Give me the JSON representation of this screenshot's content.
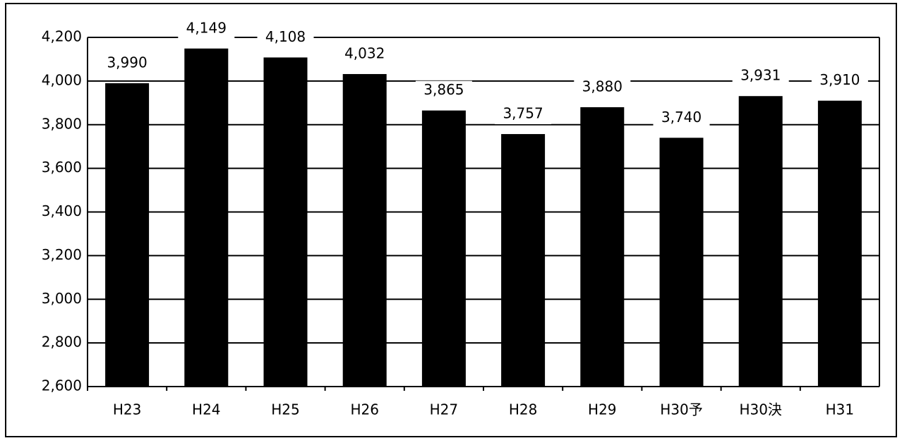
{
  "chart_data": {
    "type": "bar",
    "categories": [
      "H23",
      "H24",
      "H25",
      "H26",
      "H27",
      "H28",
      "H29",
      "H30予",
      "H30決",
      "H31"
    ],
    "values": [
      3990,
      4149,
      4108,
      4032,
      3865,
      3757,
      3880,
      3740,
      3931,
      3910
    ],
    "value_labels": [
      "3,990",
      "4,149",
      "4,108",
      "4,032",
      "3,865",
      "3,757",
      "3,880",
      "3,740",
      "3,931",
      "3,910"
    ],
    "color": "#000000",
    "ylim": [
      2600,
      4200
    ],
    "yticks": [
      {
        "value": 2600,
        "label": "2,600"
      },
      {
        "value": 2800,
        "label": "2,800"
      },
      {
        "value": 3000,
        "label": "3,000"
      },
      {
        "value": 3200,
        "label": "3,200"
      },
      {
        "value": 3400,
        "label": "3,400"
      },
      {
        "value": 3600,
        "label": "3,600"
      },
      {
        "value": 3800,
        "label": "3,800"
      },
      {
        "value": 4000,
        "label": "4,000"
      },
      {
        "value": 4200,
        "label": "4,200"
      }
    ],
    "grid": true
  }
}
